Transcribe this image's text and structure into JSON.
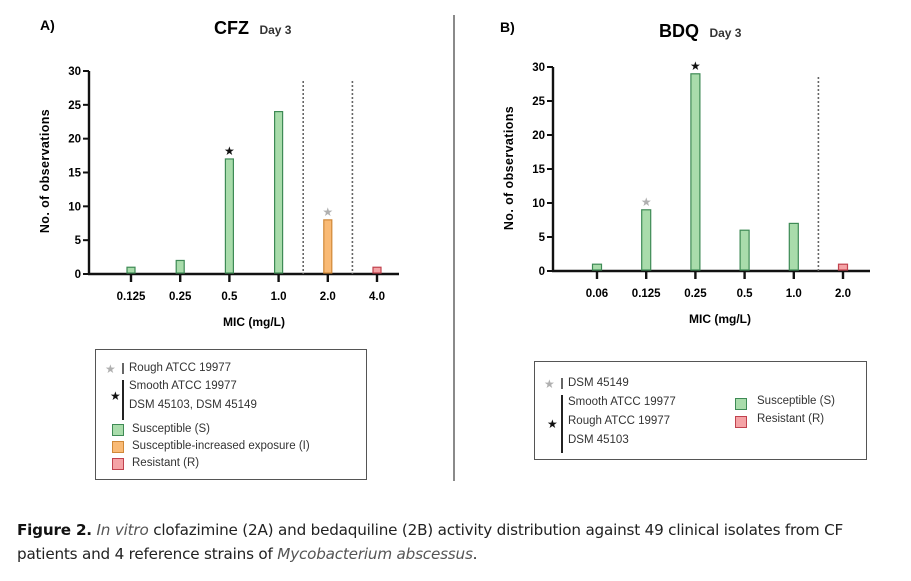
{
  "chart_data": [
    {
      "type": "bar",
      "panel_label": "A)",
      "title": "CFZ",
      "subtitle": "Day 3",
      "xlabel": "MIC (mg/L)",
      "ylabel": "No. of observations",
      "ylim": [
        0,
        30
      ],
      "yticks": [
        "0",
        "5",
        "10",
        "15",
        "20",
        "25",
        "30"
      ],
      "categories": [
        "0.125",
        "0.25",
        "0.5",
        "1.0",
        "2.0",
        "4.0"
      ],
      "values": [
        1,
        2,
        17,
        24,
        8,
        1
      ],
      "bar_class": [
        "S",
        "S",
        "S",
        "S",
        "I",
        "R"
      ],
      "markers": [
        {
          "category": "0.5",
          "marker": "black-star"
        },
        {
          "category": "2.0",
          "marker": "grey-star"
        }
      ],
      "breakpoint_lines_between": [
        [
          "1.0",
          "2.0"
        ],
        [
          "2.0",
          "4.0"
        ]
      ],
      "legend": {
        "grey_star_group": [
          "Rough ATCC 19977"
        ],
        "black_star_group": [
          "Smooth ATCC 19977",
          "DSM 45103, DSM 45149"
        ],
        "classes": [
          {
            "key": "S",
            "label": "Susceptible (S)"
          },
          {
            "key": "I",
            "label": "Susceptible-increased exposure (I)"
          },
          {
            "key": "R",
            "label": "Resistant (R)"
          }
        ]
      }
    },
    {
      "type": "bar",
      "panel_label": "B)",
      "title": "BDQ",
      "subtitle": "Day 3",
      "xlabel": "MIC (mg/L)",
      "ylabel": "No. of observations",
      "ylim": [
        0,
        30
      ],
      "yticks": [
        "0",
        "5",
        "10",
        "15",
        "20",
        "25",
        "30"
      ],
      "categories": [
        "0.06",
        "0.125",
        "0.25",
        "0.5",
        "1.0",
        "2.0"
      ],
      "values": [
        1,
        9,
        29,
        6,
        7,
        1
      ],
      "bar_class": [
        "S",
        "S",
        "S",
        "S",
        "S",
        "R"
      ],
      "markers": [
        {
          "category": "0.125",
          "marker": "grey-star"
        },
        {
          "category": "0.25",
          "marker": "black-star"
        }
      ],
      "breakpoint_lines_between": [
        [
          "1.0",
          "2.0"
        ]
      ],
      "legend": {
        "grey_star_group": [
          "DSM 45149"
        ],
        "black_star_group": [
          "Smooth ATCC 19977",
          "Rough ATCC 19977",
          "DSM 45103"
        ],
        "classes": [
          {
            "key": "S",
            "label": "Susceptible (S)"
          },
          {
            "key": "R",
            "label": "Resistant (R)"
          }
        ]
      }
    }
  ],
  "colors": {
    "S_fill": "#a9dcab",
    "S_stroke": "#3e8a55",
    "I_fill": "#f9ba75",
    "I_stroke": "#d08838",
    "R_fill": "#f5a3a6",
    "R_stroke": "#c0424e",
    "grey_star": "#b0b0b0",
    "black_star": "#111111"
  },
  "star_glyph": "★",
  "caption": {
    "label": "Figure 2.",
    "italic1": "In vitro",
    "text1": " clofazimine (2A) and bedaquiline (2B) activity distribution against 49 clinical isolates from CF patients and 4 reference strains of ",
    "italic2": "Mycobacterium abscessus",
    "text2": "."
  }
}
